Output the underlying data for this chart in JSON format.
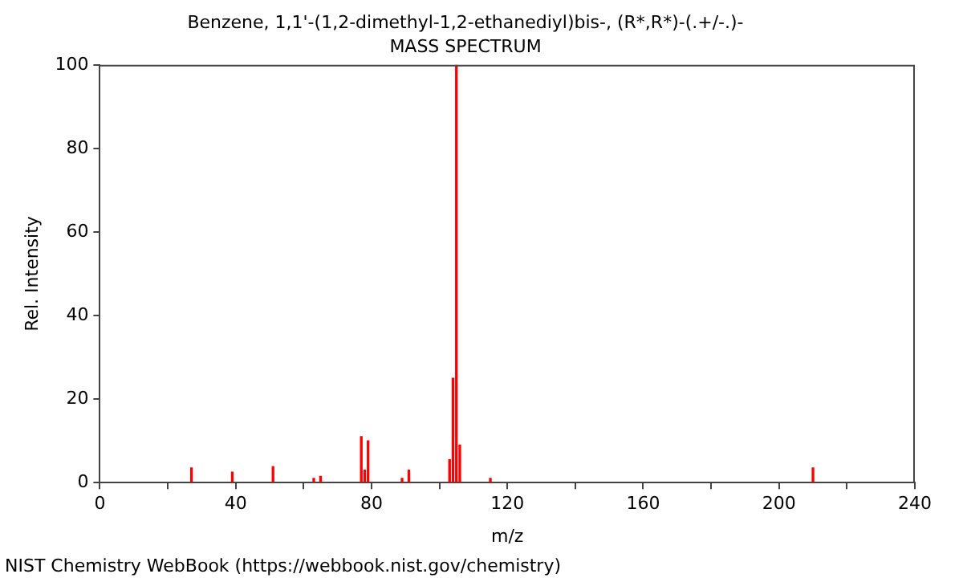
{
  "chart_data": {
    "type": "bar",
    "title": "Benzene, 1,1'-(1,2-dimethyl-1,2-ethanediyl)bis-, (R*,R*)-(.+/-.)-",
    "subtitle": "MASS SPECTRUM",
    "xlabel": "m/z",
    "ylabel": "Rel. Intensity",
    "x": [
      27,
      39,
      51,
      63,
      65,
      77,
      78,
      79,
      89,
      91,
      103,
      104,
      105,
      106,
      115,
      210
    ],
    "values": [
      3.5,
      2.5,
      3.8,
      1,
      1.5,
      11,
      3,
      10,
      1,
      3,
      5.5,
      25,
      100,
      9,
      1,
      3.5
    ],
    "color": "#ff0000",
    "xlim": [
      0,
      240
    ],
    "xticks": [
      0,
      {
        "value": 20,
        "label": null
      },
      40,
      {
        "value": 60,
        "label": null
      },
      80,
      {
        "value": 100,
        "label": null
      },
      120,
      {
        "value": 140,
        "label": null
      },
      160,
      {
        "value": 180,
        "label": null
      },
      200,
      {
        "value": 220,
        "label": null
      },
      240
    ],
    "ylim": [
      0,
      100
    ],
    "yticks": [
      0,
      20,
      40,
      60,
      80,
      100
    ],
    "grid": false,
    "legend": false,
    "annotations": [
      "NIST Chemistry WebBook (https://webbook.nist.gov/chemistry)"
    ]
  }
}
